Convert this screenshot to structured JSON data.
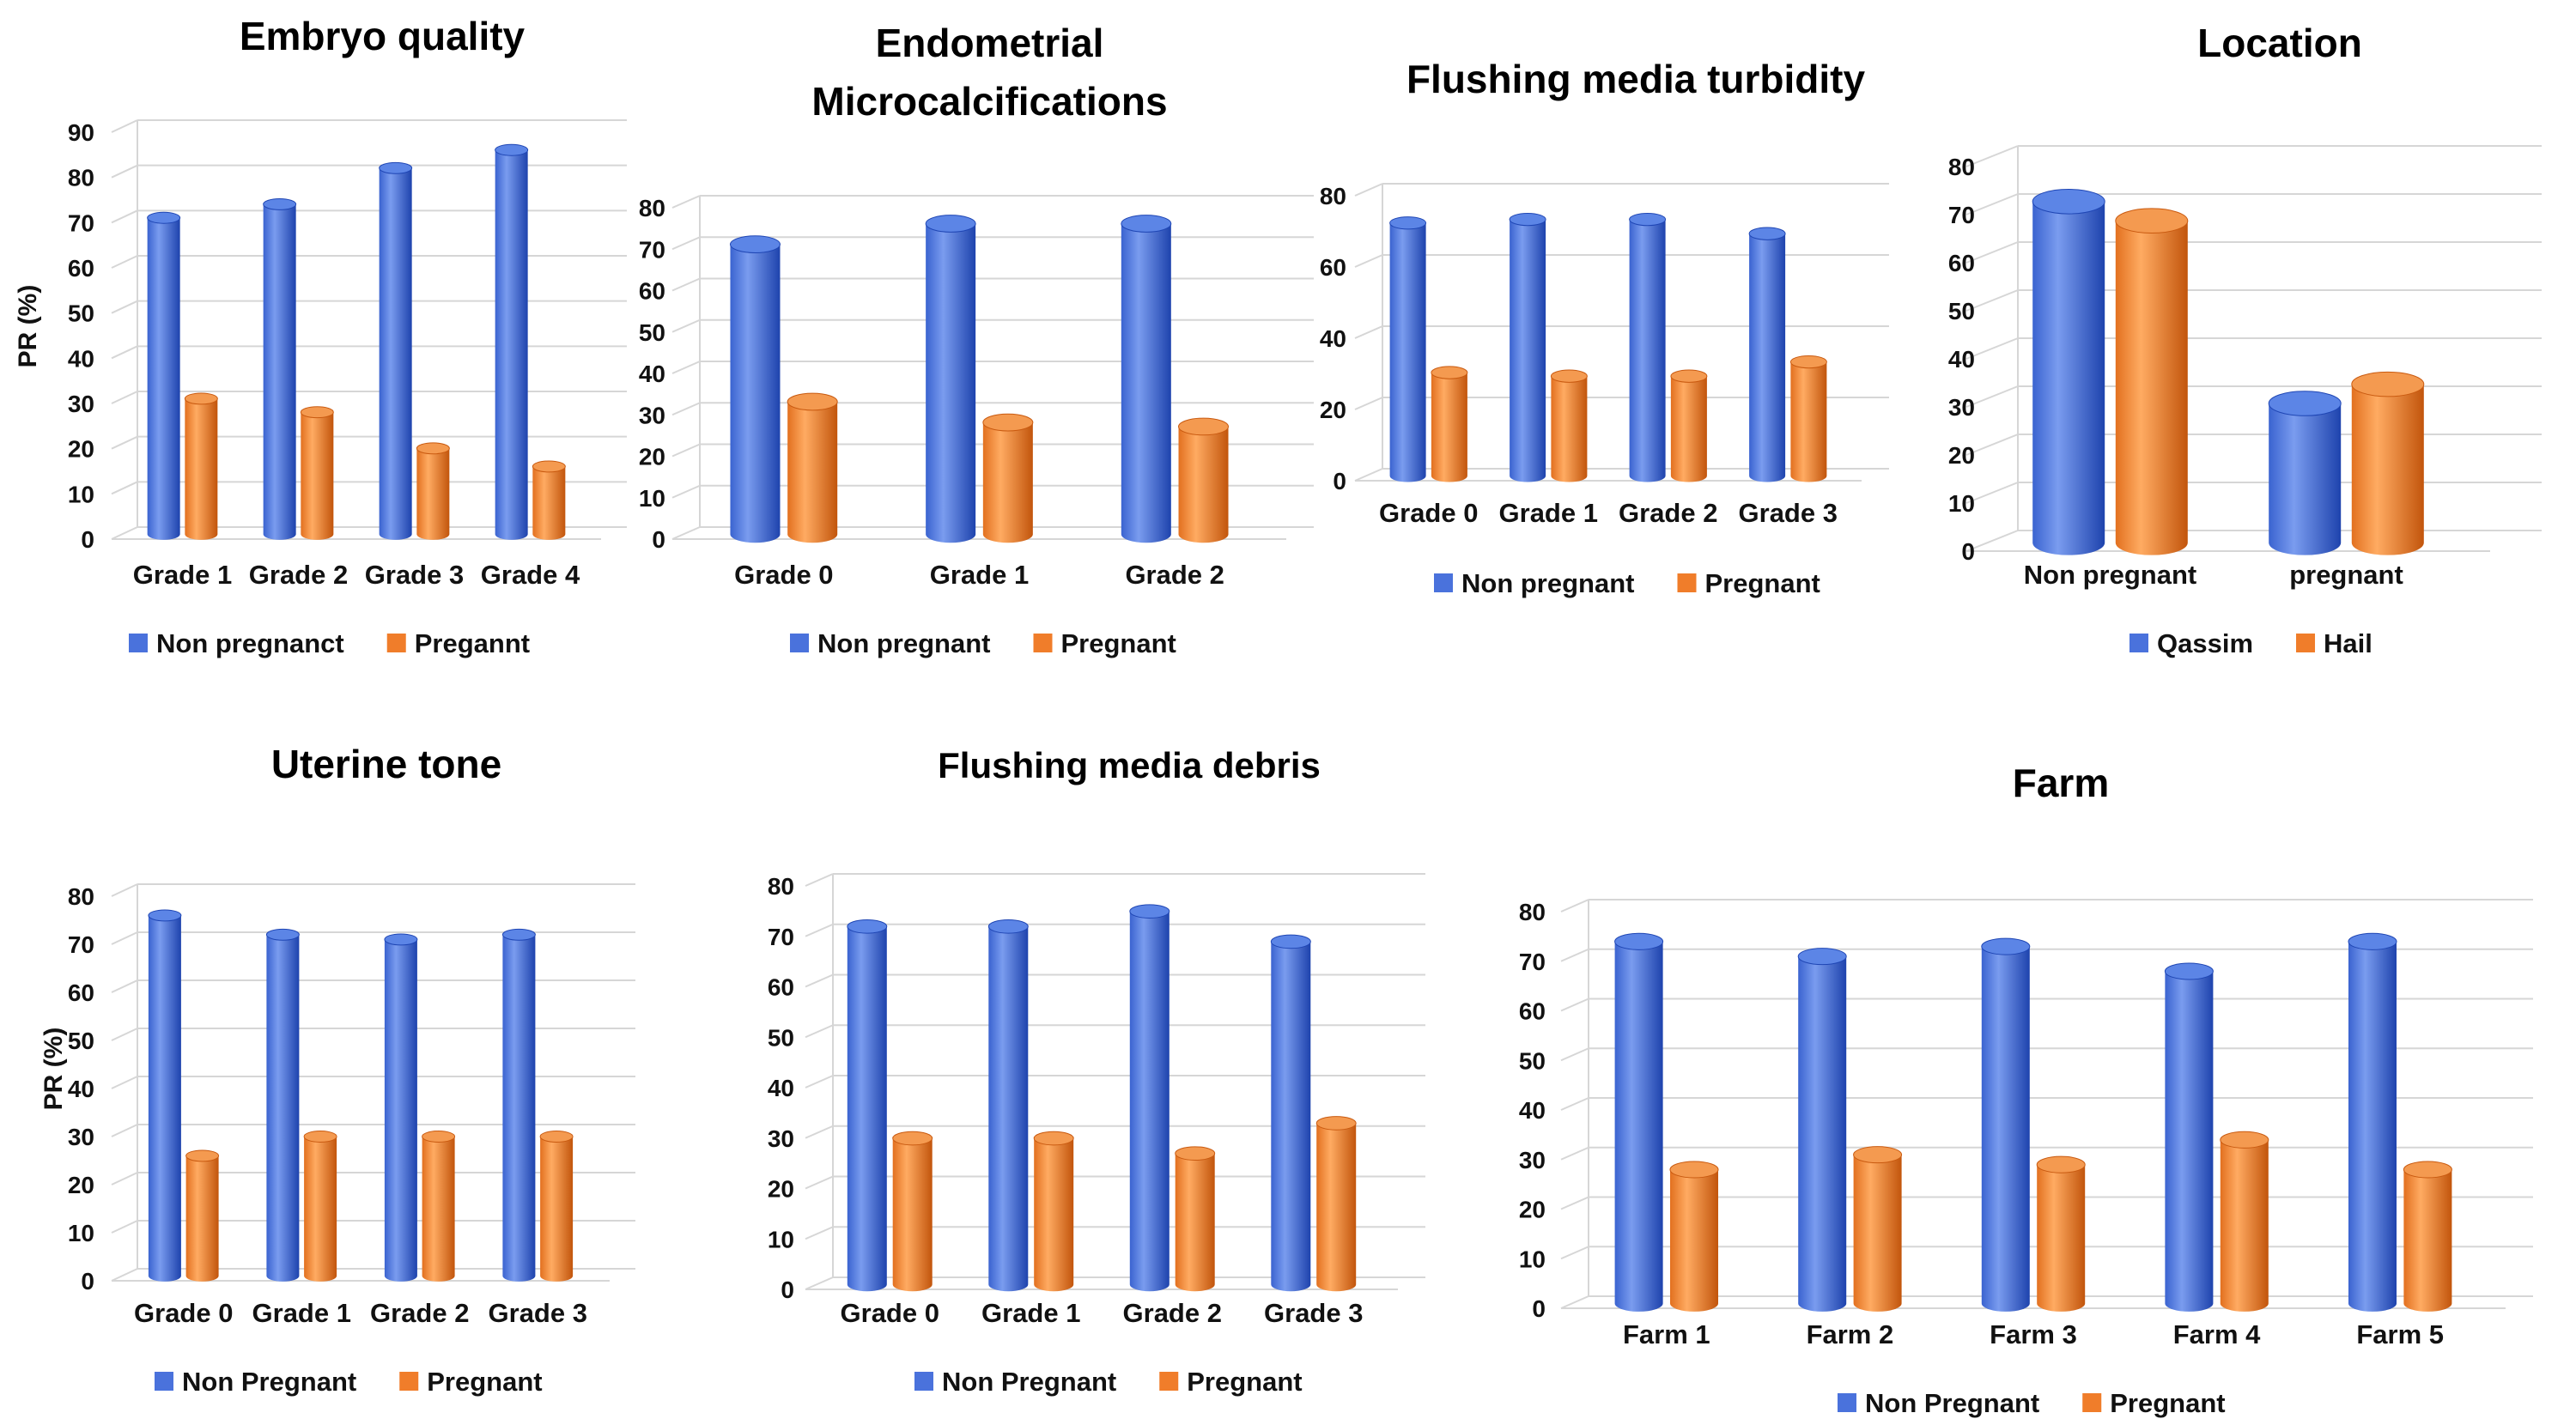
{
  "colors": {
    "blue_light": "#7f9ff0",
    "blue_mid": "#4a72dc",
    "blue_dark": "#1f46b4",
    "blue_top": "#5c85e6",
    "orange_light": "#ffae6a",
    "orange_mid": "#f07d2a",
    "orange_dark": "#c95a10",
    "orange_top": "#f49a50",
    "grid": "#d6d6d6"
  },
  "chart_data": [
    {
      "id": "embryo",
      "type": "bar",
      "title": [
        "Embryo quality"
      ],
      "ylabel": "PR (%)",
      "ylim": [
        0,
        90
      ],
      "yticks": [
        0,
        10,
        20,
        30,
        40,
        50,
        60,
        70,
        80,
        90
      ],
      "categories": [
        "Grade 1",
        "Grade 2",
        "Grade 3",
        "Grade 4"
      ],
      "series": [
        {
          "name": "Non pregnanct",
          "color": "blue",
          "values": [
            70,
            73,
            81,
            85
          ]
        },
        {
          "name": "Pregannt",
          "color": "orange",
          "values": [
            30,
            27,
            19,
            15
          ]
        }
      ]
    },
    {
      "id": "micro",
      "type": "bar",
      "title": [
        "Endometrial",
        "Microcalcifications"
      ],
      "ylabel": "",
      "ylim": [
        0,
        80
      ],
      "yticks": [
        0,
        10,
        20,
        30,
        40,
        50,
        60,
        70,
        80
      ],
      "categories": [
        "Grade 0",
        "Grade 1",
        "Grade 2"
      ],
      "series": [
        {
          "name": "Non pregnant",
          "color": "blue",
          "values": [
            70,
            75,
            75
          ]
        },
        {
          "name": "Pregnant",
          "color": "orange",
          "values": [
            32,
            27,
            26
          ]
        }
      ]
    },
    {
      "id": "turbidity",
      "type": "bar",
      "title": [
        "Flushing media turbidity"
      ],
      "ylabel": "",
      "ylim": [
        0,
        80
      ],
      "yticks": [
        0,
        20,
        40,
        60,
        80
      ],
      "categories": [
        "Grade 0",
        "Grade 1",
        "Grade 2",
        "Grade 3"
      ],
      "series": [
        {
          "name": "Non pregnant",
          "color": "blue",
          "values": [
            71,
            72,
            72,
            68
          ]
        },
        {
          "name": "Pregnant",
          "color": "orange",
          "values": [
            29,
            28,
            28,
            32
          ]
        }
      ]
    },
    {
      "id": "location",
      "type": "bar",
      "title": [
        "Location"
      ],
      "ylabel": "",
      "ylim": [
        0,
        80
      ],
      "yticks": [
        0,
        10,
        20,
        30,
        40,
        50,
        60,
        70,
        80
      ],
      "categories": [
        "Non pregnant",
        "pregnant"
      ],
      "series": [
        {
          "name": "Qassim",
          "color": "blue",
          "values": [
            71,
            29
          ]
        },
        {
          "name": "Hail",
          "color": "orange",
          "values": [
            67,
            33
          ]
        }
      ]
    },
    {
      "id": "uterine",
      "type": "bar",
      "title": [
        "Uterine tone"
      ],
      "ylabel": "PR (%)",
      "ylim": [
        0,
        80
      ],
      "yticks": [
        0,
        10,
        20,
        30,
        40,
        50,
        60,
        70,
        80
      ],
      "categories": [
        "Grade 0",
        "Grade 1",
        "Grade 2",
        "Grade 3"
      ],
      "series": [
        {
          "name": "Non Pregnant",
          "color": "blue",
          "values": [
            75,
            71,
            70,
            71
          ]
        },
        {
          "name": "Pregnant",
          "color": "orange",
          "values": [
            25,
            29,
            29,
            29
          ]
        }
      ]
    },
    {
      "id": "debris",
      "type": "bar",
      "title": [
        "Flushing media debris"
      ],
      "ylabel": "",
      "ylim": [
        0,
        80
      ],
      "yticks": [
        0,
        10,
        20,
        30,
        40,
        50,
        60,
        70,
        80
      ],
      "categories": [
        "Grade 0",
        "Grade 1",
        "Grade 2",
        "Grade 3"
      ],
      "series": [
        {
          "name": "Non Pregnant",
          "color": "blue",
          "values": [
            71,
            71,
            74,
            68
          ]
        },
        {
          "name": "Pregnant",
          "color": "orange",
          "values": [
            29,
            29,
            26,
            32
          ]
        }
      ]
    },
    {
      "id": "farm",
      "type": "bar",
      "title": [
        "Farm"
      ],
      "ylabel": "",
      "ylim": [
        0,
        80
      ],
      "yticks": [
        0,
        10,
        20,
        30,
        40,
        50,
        60,
        70,
        80
      ],
      "categories": [
        "Farm 1",
        "Farm 2",
        "Farm 3",
        "Farm 4",
        "Farm 5"
      ],
      "series": [
        {
          "name": "Non Pregnant",
          "color": "blue",
          "values": [
            73,
            70,
            72,
            67,
            73
          ]
        },
        {
          "name": "Pregnant",
          "color": "orange",
          "values": [
            27,
            30,
            28,
            33,
            27
          ]
        }
      ]
    }
  ]
}
